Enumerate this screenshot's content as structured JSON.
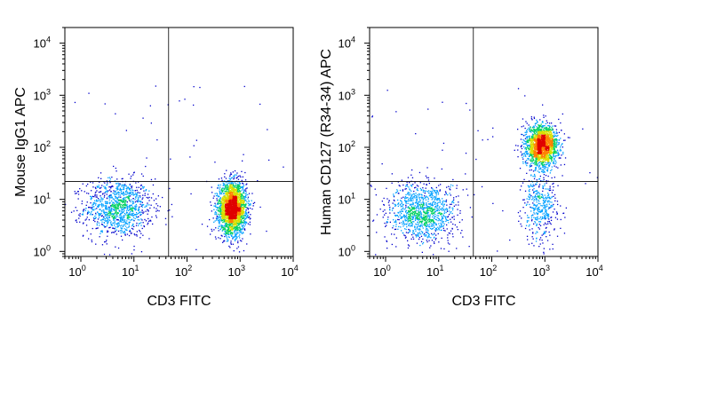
{
  "chart_data": [
    {
      "type": "scatter",
      "subtype": "flow-cytometry-density-dot-plot",
      "title": "",
      "xlabel": "CD3 FITC",
      "ylabel": "Mouse IgG1 APC",
      "xscale": "log",
      "yscale": "log",
      "xlim": [
        0.5,
        10000
      ],
      "ylim": [
        0.8,
        20000
      ],
      "xticks": [
        1,
        10,
        100,
        1000,
        10000
      ],
      "yticks": [
        1,
        10,
        100,
        1000,
        10000
      ],
      "xtick_labels": [
        {
          "base": "10",
          "exp": "0"
        },
        {
          "base": "10",
          "exp": "1"
        },
        {
          "base": "10",
          "exp": "2"
        },
        {
          "base": "10",
          "exp": "3"
        },
        {
          "base": "10",
          "exp": "4"
        }
      ],
      "ytick_labels": [
        {
          "base": "10",
          "exp": "0"
        },
        {
          "base": "10",
          "exp": "1"
        },
        {
          "base": "10",
          "exp": "2"
        },
        {
          "base": "10",
          "exp": "3"
        },
        {
          "base": "10",
          "exp": "4"
        }
      ],
      "quadrant_gate": {
        "x": 45,
        "y": 22
      },
      "grid": false,
      "density_colormap": [
        "#0000cc",
        "#00a0ff",
        "#00d060",
        "#d8e000",
        "#ff8000",
        "#e00000"
      ],
      "populations": [
        {
          "name": "",
          "x_center": 5,
          "y_center": 7,
          "x_spread_log": 0.32,
          "y_spread_log": 0.28,
          "events": 1100
        },
        {
          "name": "",
          "x_center": 700,
          "y_center": 7,
          "x_spread_log": 0.13,
          "y_spread_log": 0.24,
          "events": 2600
        }
      ]
    },
    {
      "type": "scatter",
      "subtype": "flow-cytometry-density-dot-plot",
      "title": "",
      "xlabel": "CD3 FITC",
      "ylabel": "Human CD127 (R34-34) APC",
      "xscale": "log",
      "yscale": "log",
      "xlim": [
        0.5,
        10000
      ],
      "ylim": [
        0.8,
        20000
      ],
      "xticks": [
        1,
        10,
        100,
        1000,
        10000
      ],
      "yticks": [
        1,
        10,
        100,
        1000,
        10000
      ],
      "xtick_labels": [
        {
          "base": "10",
          "exp": "0"
        },
        {
          "base": "10",
          "exp": "1"
        },
        {
          "base": "10",
          "exp": "2"
        },
        {
          "base": "10",
          "exp": "3"
        },
        {
          "base": "10",
          "exp": "4"
        }
      ],
      "ytick_labels": [
        {
          "base": "10",
          "exp": "0"
        },
        {
          "base": "10",
          "exp": "1"
        },
        {
          "base": "10",
          "exp": "2"
        },
        {
          "base": "10",
          "exp": "3"
        },
        {
          "base": "10",
          "exp": "4"
        }
      ],
      "quadrant_gate": {
        "x": 45,
        "y": 22
      },
      "grid": false,
      "density_colormap": [
        "#0000cc",
        "#00a0ff",
        "#00d060",
        "#d8e000",
        "#ff8000",
        "#e00000"
      ],
      "populations": [
        {
          "name": "",
          "x_center": 5,
          "y_center": 6,
          "x_spread_log": 0.32,
          "y_spread_log": 0.28,
          "events": 1100
        },
        {
          "name": "",
          "x_center": 850,
          "y_center": 110,
          "x_spread_log": 0.15,
          "y_spread_log": 0.2,
          "events": 1900
        },
        {
          "name": "",
          "x_center": 800,
          "y_center": 8,
          "x_spread_log": 0.16,
          "y_spread_log": 0.33,
          "events": 420
        }
      ]
    }
  ]
}
